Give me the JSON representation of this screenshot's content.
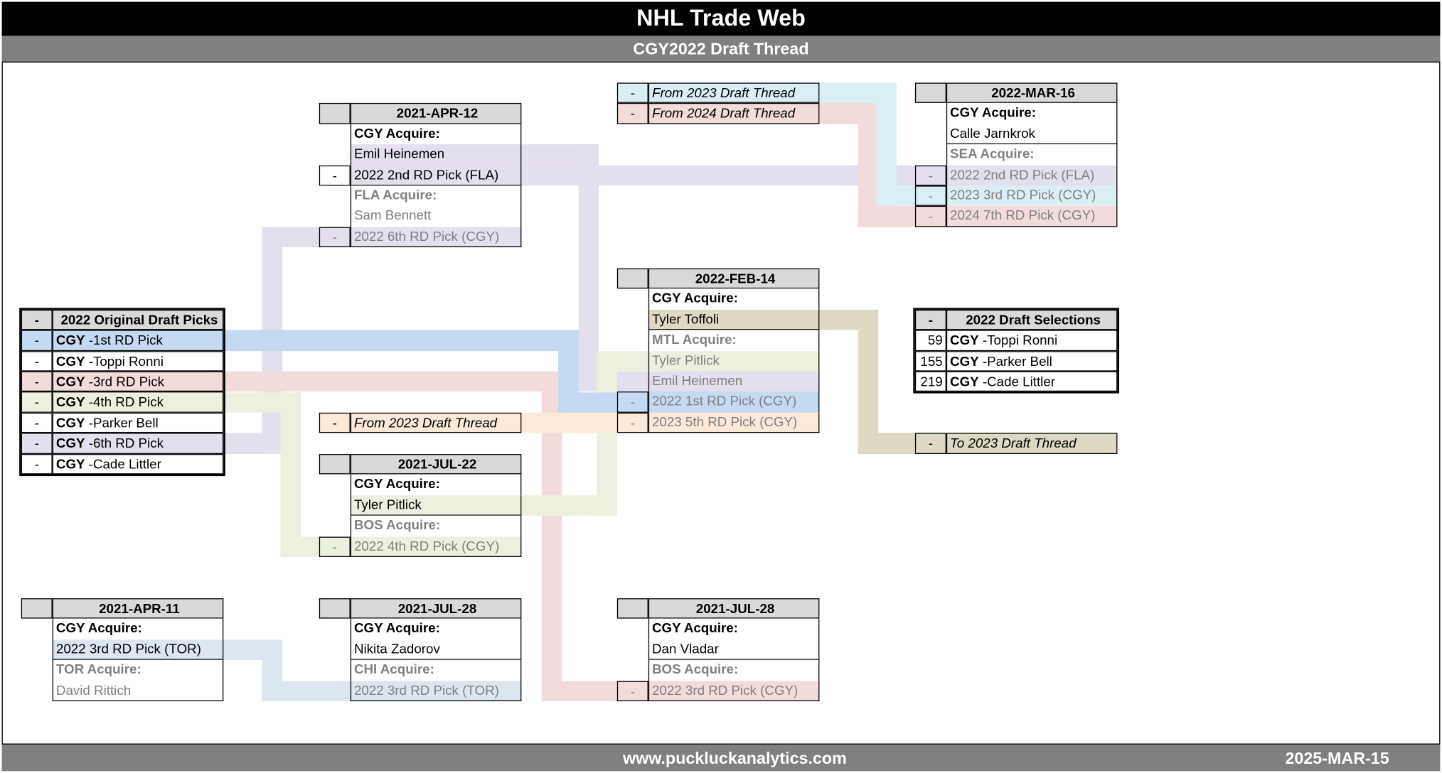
{
  "header": {
    "title": "NHL Trade Web",
    "subtitle": "CGY2022 Draft Thread"
  },
  "footer": {
    "website": "www.puckluckanalytics.com",
    "date": "2025-MAR-15"
  },
  "colors": {
    "purple": "#e4dfec",
    "blue": "#c5d9f1",
    "pink": "#f2dcdb",
    "green": "#ebf1de",
    "cyan": "#daeef3",
    "orange": "#fde9d9",
    "tan": "#ddd9c4",
    "lightblue": "#dce6f1",
    "header_grey": "#d9d9d9",
    "muted_text": "#808080"
  },
  "original_picks": {
    "header_dash": "-",
    "title": "2022 Original Draft Picks",
    "rows": [
      {
        "dash": "-",
        "team": "CGY",
        "text": "-1st RD Pick",
        "color": "blue"
      },
      {
        "dash": "-",
        "team": "CGY",
        "text": "-Toppi Ronni"
      },
      {
        "dash": "-",
        "team": "CGY",
        "text": "-3rd RD Pick",
        "color": "pink"
      },
      {
        "dash": "-",
        "team": "CGY",
        "text": "-4th RD Pick",
        "color": "green"
      },
      {
        "dash": "-",
        "team": "CGY",
        "text": "-Parker Bell"
      },
      {
        "dash": "-",
        "team": "CGY",
        "text": "-6th RD Pick",
        "color": "purple"
      },
      {
        "dash": "-",
        "team": "CGY",
        "text": "-Cade Littler"
      }
    ]
  },
  "draft_selections": {
    "header_dash": "-",
    "title": "2022 Draft Selections",
    "rows": [
      {
        "dash": "59",
        "team": "CGY",
        "text": "-Toppi Ronni"
      },
      {
        "dash": "155",
        "team": "CGY",
        "text": "-Parker Bell"
      },
      {
        "dash": "219",
        "team": "CGY",
        "text": "-Cade Littler"
      }
    ]
  },
  "threads": {
    "from2023_top": {
      "dash": "-",
      "text": "From 2023 Draft Thread",
      "color": "cyan"
    },
    "from2024": {
      "dash": "-",
      "text": "From 2024 Draft Thread",
      "color": "pink"
    },
    "from2023_mid": {
      "dash": "-",
      "text": "From 2023 Draft Thread",
      "color": "orange"
    },
    "to2023": {
      "dash": "-",
      "text": "To 2023 Draft Thread",
      "color": "tan"
    }
  },
  "trades": {
    "apr12": {
      "date": "2021-APR-12",
      "rows": [
        {
          "style": "acq",
          "text": "CGY Acquire:",
          "side": "a"
        },
        {
          "style": "item",
          "text": "Emil Heinemen",
          "side": "a",
          "color": "purple"
        },
        {
          "style": "item",
          "dash": "-",
          "text": "2022 2nd RD Pick (FLA)",
          "side": "a",
          "color": "purple"
        },
        {
          "style": "oacq",
          "text": "FLA Acquire:",
          "side": "b"
        },
        {
          "style": "oitem",
          "text": "Sam Bennett",
          "side": "b"
        },
        {
          "style": "oitem",
          "dash": "-",
          "text": "2022 6th RD Pick (CGY)",
          "side": "b",
          "color": "purple"
        }
      ]
    },
    "feb14": {
      "date": "2022-FEB-14",
      "rows": [
        {
          "style": "acq",
          "text": "CGY Acquire:",
          "side": "a"
        },
        {
          "style": "item",
          "text": "Tyler Toffoli",
          "side": "a",
          "color": "tan"
        },
        {
          "style": "oacq",
          "text": "MTL Acquire:",
          "side": "b"
        },
        {
          "style": "oitem",
          "text": "Tyler Pitlick",
          "side": "b",
          "color": "green"
        },
        {
          "style": "oitem",
          "text": "Emil Heinemen",
          "side": "b",
          "color": "purple"
        },
        {
          "style": "oitem",
          "dash": "-",
          "text": "2022 1st RD Pick (CGY)",
          "side": "b",
          "color": "blue"
        },
        {
          "style": "oitem",
          "dash": "-",
          "text": "2023 5th RD Pick (CGY)",
          "side": "b",
          "color": "orange"
        }
      ]
    },
    "mar16": {
      "date": "2022-MAR-16",
      "rows": [
        {
          "style": "acq",
          "text": "CGY Acquire:",
          "side": "a"
        },
        {
          "style": "item",
          "text": "Calle Jarnkrok",
          "side": "a"
        },
        {
          "style": "oacq",
          "text": "SEA Acquire:",
          "side": "b"
        },
        {
          "style": "oitem",
          "dash": "-",
          "text": "2022 2nd RD Pick (FLA)",
          "side": "b",
          "color": "purple"
        },
        {
          "style": "oitem",
          "dash": "-",
          "text": "2023 3rd RD Pick (CGY)",
          "side": "b",
          "color": "cyan"
        },
        {
          "style": "oitem",
          "dash": "-",
          "text": "2024 7th RD Pick (CGY)",
          "side": "b",
          "color": "pink"
        }
      ]
    },
    "jul22": {
      "date": "2021-JUL-22",
      "rows": [
        {
          "style": "acq",
          "text": "CGY Acquire:",
          "side": "a"
        },
        {
          "style": "item",
          "text": "Tyler Pitlick",
          "side": "a",
          "color": "green"
        },
        {
          "style": "oacq",
          "text": "BOS Acquire:",
          "side": "b"
        },
        {
          "style": "oitem",
          "dash": "-",
          "text": "2022 4th RD Pick (CGY)",
          "side": "b",
          "color": "green"
        }
      ]
    },
    "apr11": {
      "date": "2021-APR-11",
      "rows": [
        {
          "style": "acq",
          "text": "CGY Acquire:",
          "side": "a"
        },
        {
          "style": "item",
          "text": "2022 3rd RD Pick (TOR)",
          "side": "a",
          "color": "lightblue"
        },
        {
          "style": "oacq",
          "text": "TOR Acquire:",
          "side": "b"
        },
        {
          "style": "oitem",
          "text": "David Rittich",
          "side": "b"
        }
      ]
    },
    "jul28_chi": {
      "date": "2021-JUL-28",
      "rows": [
        {
          "style": "acq",
          "text": "CGY Acquire:",
          "side": "a"
        },
        {
          "style": "item",
          "text": "Nikita Zadorov",
          "side": "a"
        },
        {
          "style": "oacq",
          "text": "CHI Acquire:",
          "side": "b"
        },
        {
          "style": "oitem",
          "text": "2022 3rd RD Pick (TOR)",
          "side": "b",
          "color": "lightblue"
        }
      ]
    },
    "jul28_bos": {
      "date": "2021-JUL-28",
      "rows": [
        {
          "style": "acq",
          "text": "CGY Acquire:",
          "side": "a"
        },
        {
          "style": "item",
          "text": "Dan Vladar",
          "side": "a"
        },
        {
          "style": "oacq",
          "text": "BOS Acquire:",
          "side": "b"
        },
        {
          "style": "oitem",
          "dash": "-",
          "text": "2022 3rd RD Pick (CGY)",
          "side": "b",
          "color": "pink"
        }
      ]
    }
  }
}
